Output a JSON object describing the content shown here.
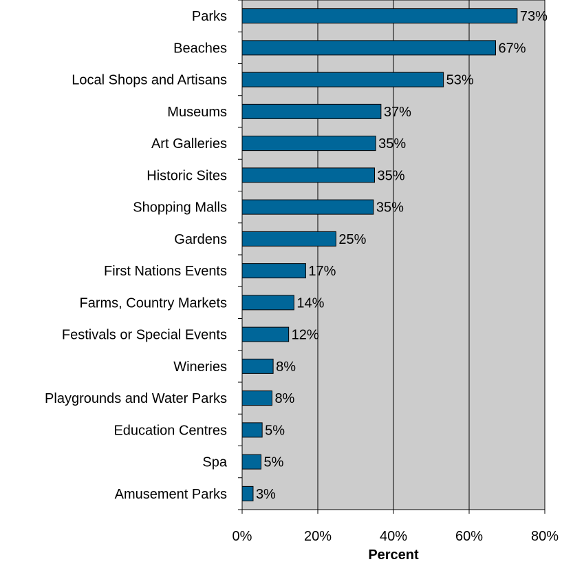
{
  "chart_data": {
    "type": "bar",
    "orientation": "horizontal",
    "title": "",
    "xlabel": "Percent",
    "ylabel": "",
    "xlim": [
      0,
      80
    ],
    "x_ticks": [
      0,
      20,
      40,
      60,
      80
    ],
    "x_tick_labels": [
      "0%",
      "20%",
      "40%",
      "60%",
      "80%"
    ],
    "grid": "vertical",
    "legend": "none",
    "categories": [
      "Parks",
      "Beaches",
      "Local Shops and Artisans",
      "Museums",
      "Art Galleries",
      "Historic Sites",
      "Shopping Malls",
      "Gardens",
      "First Nations Events",
      "Farms, Country Markets",
      "Festivals or Special Events",
      "Wineries",
      "Playgrounds and Water Parks",
      "Education Centres",
      "Spa",
      "Amusement Parks"
    ],
    "values": [
      72.7,
      67,
      53.2,
      36.7,
      35.3,
      35,
      34.7,
      24.8,
      16.8,
      13.7,
      12.3,
      8.2,
      7.9,
      5.3,
      5,
      2.9
    ],
    "data_labels": [
      "73%",
      "67%",
      "53%",
      "37%",
      "35%",
      "35%",
      "35%",
      "25%",
      "17%",
      "14%",
      "12%",
      "8%",
      "8%",
      "5%",
      "5%",
      "3%"
    ],
    "colors": {
      "bar_fill": "#006699",
      "bar_stroke": "#000000",
      "plot_background": "#cccccc",
      "gridline": "#000000",
      "page_background": "#ffffff"
    }
  }
}
